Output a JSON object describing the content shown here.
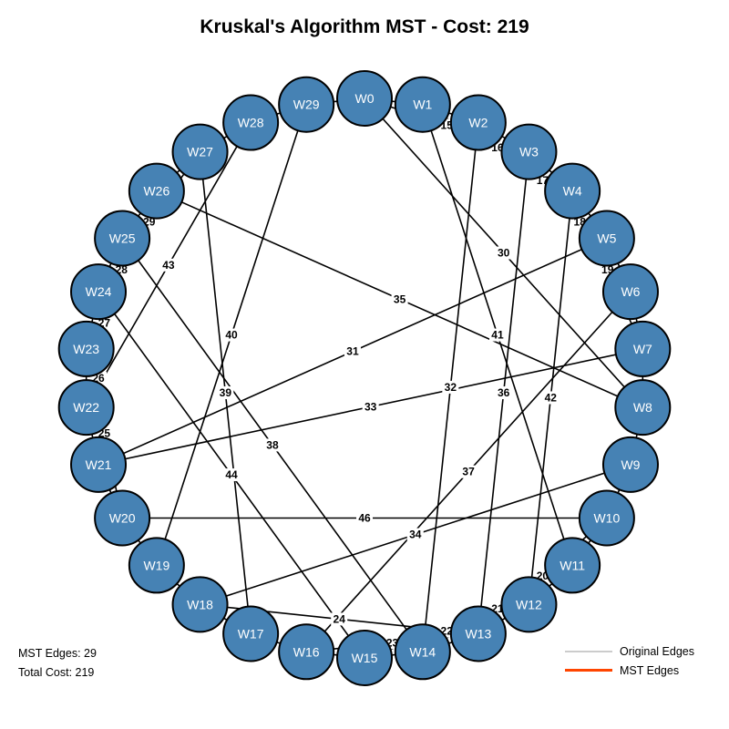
{
  "title": "Kruskal's Algorithm MST - Cost: 219",
  "stats": {
    "mst_edges": "MST Edges: 29",
    "total_cost": "Total Cost: 219"
  },
  "legend": [
    {
      "label": "Original Edges",
      "color": "#cccccc"
    },
    {
      "label": "MST Edges",
      "color": "#ff4500"
    }
  ],
  "colors": {
    "node_fill": "#4682b4",
    "node_stroke": "#000000",
    "edge": "#000000"
  },
  "nodes": [
    "W0",
    "W1",
    "W2",
    "W3",
    "W4",
    "W5",
    "W6",
    "W7",
    "W8",
    "W9",
    "W10",
    "W11",
    "W12",
    "W13",
    "W14",
    "W15",
    "W16",
    "W17",
    "W18",
    "W19",
    "W20",
    "W21",
    "W22",
    "W23",
    "W24",
    "W25",
    "W26",
    "W27",
    "W28",
    "W29"
  ],
  "edges": [
    {
      "from": "W0",
      "to": "W1",
      "weight": ""
    },
    {
      "from": "W1",
      "to": "W2",
      "weight": ""
    },
    {
      "from": "W2",
      "to": "W3",
      "weight": ""
    },
    {
      "from": "W3",
      "to": "W4",
      "weight": ""
    },
    {
      "from": "W4",
      "to": "W5",
      "weight": ""
    },
    {
      "from": "W5",
      "to": "W6",
      "weight": ""
    },
    {
      "from": "W6",
      "to": "W7",
      "weight": ""
    },
    {
      "from": "W7",
      "to": "W8",
      "weight": ""
    },
    {
      "from": "W8",
      "to": "W9",
      "weight": ""
    },
    {
      "from": "W9",
      "to": "W10",
      "weight": ""
    },
    {
      "from": "W10",
      "to": "W11",
      "weight": ""
    },
    {
      "from": "W11",
      "to": "W12",
      "weight": ""
    },
    {
      "from": "W12",
      "to": "W13",
      "weight": ""
    },
    {
      "from": "W13",
      "to": "W14",
      "weight": ""
    },
    {
      "from": "W14",
      "to": "W15",
      "weight": ""
    },
    {
      "from": "W15",
      "to": "W16",
      "weight": ""
    },
    {
      "from": "W16",
      "to": "W17",
      "weight": ""
    },
    {
      "from": "W17",
      "to": "W18",
      "weight": ""
    },
    {
      "from": "W18",
      "to": "W19",
      "weight": ""
    },
    {
      "from": "W19",
      "to": "W20",
      "weight": ""
    },
    {
      "from": "W20",
      "to": "W21",
      "weight": ""
    },
    {
      "from": "W21",
      "to": "W22",
      "weight": ""
    },
    {
      "from": "W22",
      "to": "W23",
      "weight": ""
    },
    {
      "from": "W23",
      "to": "W24",
      "weight": ""
    },
    {
      "from": "W24",
      "to": "W25",
      "weight": ""
    },
    {
      "from": "W25",
      "to": "W26",
      "weight": ""
    },
    {
      "from": "W26",
      "to": "W27",
      "weight": ""
    },
    {
      "from": "W27",
      "to": "W28",
      "weight": ""
    },
    {
      "from": "W28",
      "to": "W29",
      "weight": ""
    },
    {
      "from": "W29",
      "to": "W0",
      "weight": ""
    },
    {
      "from": "W0",
      "to": "W3",
      "weight": "15"
    },
    {
      "from": "W1",
      "to": "W4",
      "weight": "16"
    },
    {
      "from": "W2",
      "to": "W5",
      "weight": "17"
    },
    {
      "from": "W3",
      "to": "W6",
      "weight": "18"
    },
    {
      "from": "W4",
      "to": "W7",
      "weight": "19"
    },
    {
      "from": "W10",
      "to": "W13",
      "weight": "20"
    },
    {
      "from": "W11",
      "to": "W14",
      "weight": "21"
    },
    {
      "from": "W12",
      "to": "W15",
      "weight": "22"
    },
    {
      "from": "W13",
      "to": "W16",
      "weight": "23"
    },
    {
      "from": "W18",
      "to": "W13",
      "weight": "24"
    },
    {
      "from": "W20",
      "to": "W23",
      "weight": "25"
    },
    {
      "from": "W21",
      "to": "W24",
      "weight": "26"
    },
    {
      "from": "W22",
      "to": "W25",
      "weight": "27"
    },
    {
      "from": "W23",
      "to": "W26",
      "weight": "28"
    },
    {
      "from": "W24",
      "to": "W27",
      "weight": "29"
    },
    {
      "from": "W0",
      "to": "W8",
      "weight": "30"
    },
    {
      "from": "W5",
      "to": "W21",
      "weight": "31"
    },
    {
      "from": "W2",
      "to": "W14",
      "weight": "32"
    },
    {
      "from": "W7",
      "to": "W21",
      "weight": "33"
    },
    {
      "from": "W9",
      "to": "W18",
      "weight": "34"
    },
    {
      "from": "W26",
      "to": "W8",
      "weight": "35"
    },
    {
      "from": "W3",
      "to": "W13",
      "weight": "36"
    },
    {
      "from": "W6",
      "to": "W16",
      "weight": "37"
    },
    {
      "from": "W25",
      "to": "W14",
      "weight": "38"
    },
    {
      "from": "W27",
      "to": "W17",
      "weight": "39"
    },
    {
      "from": "W29",
      "to": "W19",
      "weight": "40"
    },
    {
      "from": "W1",
      "to": "W11",
      "weight": "41"
    },
    {
      "from": "W4",
      "to": "W12",
      "weight": "42"
    },
    {
      "from": "W28",
      "to": "W22",
      "weight": "43"
    },
    {
      "from": "W24",
      "to": "W15",
      "weight": "44"
    },
    {
      "from": "W20",
      "to": "W10",
      "weight": "46"
    }
  ]
}
